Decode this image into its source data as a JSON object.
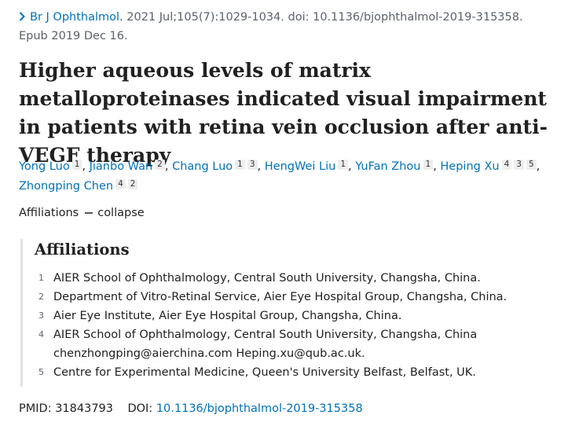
{
  "citation": {
    "journal": "Br J Ophthalmol.",
    "details": "2021 Jul;105(7):1029-1034. doi: 10.1136/bjophthalmol-2019-315358.",
    "epub": "Epub 2019 Dec 16."
  },
  "title": "Higher aqueous levels of matrix metalloproteinases indicated visual impairment in patients with retina vein occlusion after anti-VEGF therapy",
  "authors": [
    {
      "name": "Yong Luo",
      "affiliations": [
        "1"
      ],
      "separator": ","
    },
    {
      "name": "Jianbo Wan",
      "affiliations": [
        "2"
      ],
      "separator": ","
    },
    {
      "name": "Chang Luo",
      "affiliations": [
        "1",
        "3"
      ],
      "separator": ","
    },
    {
      "name": "HengWei Liu",
      "affiliations": [
        "1"
      ],
      "separator": ","
    },
    {
      "name": "YuFan Zhou",
      "affiliations": [
        "1"
      ],
      "separator": ","
    },
    {
      "name": "Heping Xu",
      "affiliations": [
        "4",
        "3",
        "5"
      ],
      "separator": ","
    },
    {
      "name": "Zhongping Chen",
      "affiliations": [
        "4",
        "2"
      ]
    }
  ],
  "affiliations_toggle": {
    "label": "Affiliations",
    "action": "collapse"
  },
  "affiliations": {
    "heading": "Affiliations",
    "items": [
      {
        "number": "1",
        "lines": [
          "AIER School of Ophthalmology, Central South University, Changsha, China."
        ]
      },
      {
        "number": "2",
        "lines": [
          "Department of Vitro-Retinal Service, Aier Eye Hospital Group, Changsha, China."
        ]
      },
      {
        "number": "3",
        "lines": [
          "Aier Eye Institute, Aier Eye Hospital Group, Changsha, China."
        ]
      },
      {
        "number": "4",
        "lines": [
          "AIER School of Ophthalmology, Central South University, Changsha, China",
          "chenzhongping@aierchina.com Heping.xu@qub.ac.uk."
        ]
      },
      {
        "number": "5",
        "lines": [
          "Centre for Experimental Medicine, Queen's University Belfast, Belfast, UK."
        ]
      }
    ]
  },
  "identifiers": {
    "pmid_label": "PMID:",
    "pmid": "31843793",
    "doi_label": "DOI:",
    "doi": "10.1136/bjophthalmol-2019-315358"
  }
}
